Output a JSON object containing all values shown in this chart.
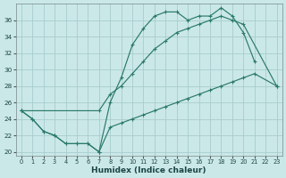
{
  "background_color": "#cbe8e8",
  "grid_color": "#a8cccc",
  "line_color": "#2a7a6a",
  "xlabel": "Humidex (Indice chaleur)",
  "xlim": [
    -0.5,
    23.5
  ],
  "ylim": [
    19.5,
    38
  ],
  "yticks": [
    20,
    22,
    24,
    26,
    28,
    30,
    32,
    34,
    36
  ],
  "xticks": [
    0,
    1,
    2,
    3,
    4,
    5,
    6,
    7,
    8,
    9,
    10,
    11,
    12,
    13,
    14,
    15,
    16,
    17,
    18,
    19,
    20,
    21,
    22,
    23
  ],
  "line1_x": [
    0,
    1,
    2,
    3,
    4,
    5,
    6,
    7,
    8,
    9,
    10,
    11,
    12,
    13,
    14,
    15,
    16,
    17,
    18,
    19,
    20,
    21
  ],
  "line1_y": [
    25,
    24,
    22.5,
    22,
    21,
    21,
    21,
    20,
    26,
    29,
    33,
    35,
    36.5,
    37,
    37,
    36,
    36.5,
    36.5,
    37.5,
    36.5,
    34.5,
    31
  ],
  "line2_x": [
    0,
    7,
    8,
    9,
    10,
    11,
    12,
    13,
    14,
    15,
    16,
    17,
    18,
    19,
    20,
    23
  ],
  "line2_y": [
    25,
    25,
    27,
    28,
    29.5,
    31,
    32.5,
    33.5,
    34.5,
    35,
    35.5,
    36,
    36.5,
    36,
    35.5,
    28
  ],
  "line3_x": [
    0,
    1,
    2,
    3,
    4,
    5,
    6,
    7,
    8,
    9,
    10,
    11,
    12,
    13,
    14,
    15,
    16,
    17,
    18,
    19,
    20,
    21,
    23
  ],
  "line3_y": [
    25,
    24,
    22.5,
    22,
    21,
    21,
    21,
    20,
    23,
    23.5,
    24,
    24.5,
    25,
    25.5,
    26,
    26.5,
    27,
    27.5,
    28,
    28.5,
    29,
    29.5,
    28
  ]
}
